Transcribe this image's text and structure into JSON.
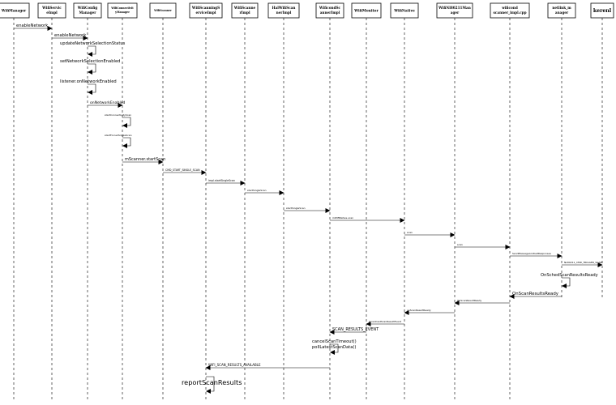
{
  "participants": [
    {
      "id": "wm",
      "lines": [
        "WifiManager"
      ],
      "color": "#000000"
    },
    {
      "id": "ws",
      "lines": [
        "WifiServic",
        "eImpl"
      ],
      "color": "#000000"
    },
    {
      "id": "wc",
      "lines": [
        "WifiConfig",
        "Manager"
      ],
      "color": "#000000"
    },
    {
      "id": "wcm",
      "lines": [
        "WifiConnectivit",
        "yManager"
      ],
      "color": "#000000"
    },
    {
      "id": "ws2",
      "lines": [
        "WifiScanner"
      ],
      "color": "#000000"
    },
    {
      "id": "wss",
      "lines": [
        "WifiScanningS",
        "erviceImpl"
      ],
      "color": "#000000"
    },
    {
      "id": "wsi",
      "lines": [
        "WifiScanne",
        "rImpl"
      ],
      "color": "#000000"
    },
    {
      "id": "hal",
      "lines": [
        "HalWifiScan",
        "nerImpl"
      ],
      "color": "#000000"
    },
    {
      "id": "wsn",
      "lines": [
        "WificondSc",
        "annerImpl"
      ],
      "color": "#000000"
    },
    {
      "id": "wmon",
      "lines": [
        "WifiMonitor"
      ],
      "color": "#000000"
    },
    {
      "id": "wn",
      "lines": [
        "WifiNative"
      ],
      "color": "#000000"
    },
    {
      "id": "w80",
      "lines": [
        "WifiNl80211Man",
        "ager"
      ],
      "color": "#000000"
    },
    {
      "id": "wcd",
      "lines": [
        "wificond",
        "scanner_impl.cpp"
      ],
      "color": "#cc0000"
    },
    {
      "id": "nl",
      "lines": [
        "netlink_m",
        "anager"
      ],
      "color": "#000000"
    },
    {
      "id": "kn",
      "lines": [
        "kerenl"
      ],
      "color": "#cc0000"
    }
  ],
  "messages": [
    {
      "type": "arrow",
      "from": "wm",
      "to": "ws",
      "label": "enableNetwork"
    },
    {
      "type": "arrow",
      "from": "ws",
      "to": "wc",
      "label": "enableNetwork"
    },
    {
      "type": "self",
      "on": "wc",
      "label": "updateNetworkSelectionStatus"
    },
    {
      "type": "self",
      "on": "wc",
      "label": "setNetworkSelectionEnabled"
    },
    {
      "type": "self",
      "on": "wc",
      "label": "listener.onNetworkEnabled"
    },
    {
      "type": "arrow",
      "from": "wc",
      "to": "wcm",
      "label": "onNetworkEnabled"
    },
    {
      "type": "self",
      "on": "wcm",
      "label": "startConnectivityScan"
    },
    {
      "type": "self",
      "on": "wcm",
      "label": "startForcedSingleScan"
    },
    {
      "type": "arrow",
      "from": "wcm",
      "to": "ws2",
      "label": "mScanner.startScan"
    },
    {
      "type": "arrow",
      "from": "ws2",
      "to": "wss",
      "label": "CMD_START_SINGLE_SCAN"
    },
    {
      "type": "arrow",
      "from": "wss",
      "to": "wsi",
      "label": "impl.startSingleScan"
    },
    {
      "type": "arrow",
      "from": "wsi",
      "to": "hal",
      "label": "startSingleScan"
    },
    {
      "type": "arrow",
      "from": "hal",
      "to": "wsn",
      "label": "startSingleScan"
    },
    {
      "type": "arrow",
      "from": "wsn",
      "to": "wn",
      "label": "mWifiNative.scan"
    },
    {
      "type": "arrow",
      "from": "wn",
      "to": "w80",
      "label": "scan"
    },
    {
      "type": "arrow",
      "from": "w80",
      "to": "wcd",
      "label": "scan"
    },
    {
      "type": "arrow",
      "from": "wcd",
      "to": "nl",
      "label": "SendMessageAndGetResponses"
    },
    {
      "type": "arrow",
      "from": "nl",
      "to": "kn",
      "label": "NL80211_CMD_TRIGGER_SCAN"
    },
    {
      "type": "self",
      "on": "nl",
      "label": "OnSchedScanResultsReady"
    },
    {
      "type": "arrow",
      "from": "nl",
      "to": "wcd",
      "label": "OnScanResultsReady"
    },
    {
      "type": "arrow",
      "from": "wcd",
      "to": "w80",
      "label": "OnScanResultReady"
    },
    {
      "type": "arrow",
      "from": "w80",
      "to": "wn",
      "label": "onScanResultReady"
    },
    {
      "type": "arrow",
      "from": "wn",
      "to": "wmon",
      "label": "broadcastScanResultEvent"
    },
    {
      "type": "arrow",
      "from": "wmon",
      "to": "wsn",
      "label": "SCAN_RESULTS_EVENT"
    },
    {
      "type": "self",
      "on": "wsn",
      "label": "cancelScanTimeout()",
      "label2": "pollLatestScanData()"
    },
    {
      "type": "arrow",
      "from": "wsn",
      "to": "wss",
      "label": "WIFI_SCAN_RESULTS_AVAILABLE"
    },
    {
      "type": "self",
      "on": "wss",
      "label": "reportScanResults"
    }
  ]
}
